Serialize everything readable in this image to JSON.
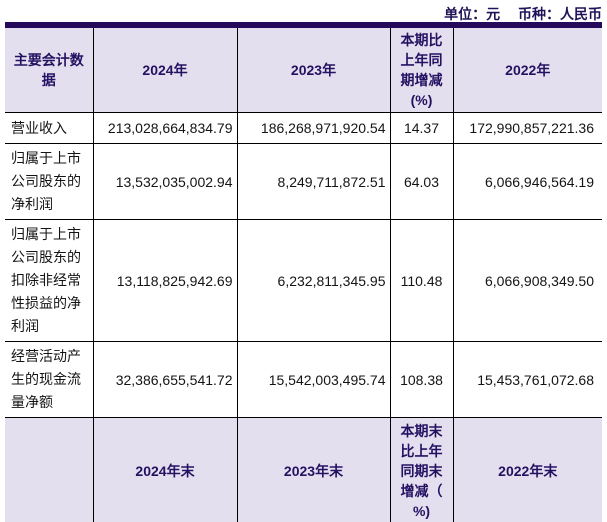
{
  "caption": {
    "unit_label": "单位：元",
    "currency_label": "币种：人民币"
  },
  "colors": {
    "top_rule": "#250a5c",
    "header_background": "#e4dfee",
    "header_text": "#241162",
    "grid_line": "#000000",
    "body_text": "#141414"
  },
  "table": {
    "header_row1": {
      "col1": "主要会计数据",
      "col2": "2024年",
      "col3": "2023年",
      "col4": "本期比\n上年同\n期增减\n(%)",
      "col5": "2022年"
    },
    "rows": [
      {
        "label": "营业收入",
        "y2024": "213,028,664,834.79",
        "y2023": "186,268,971,920.54",
        "change_pct": "14.37",
        "y2022": "172,990,857,221.36"
      },
      {
        "label": "归属于上市公司股东的净利润",
        "y2024": "13,532,035,002.94",
        "y2023": "8,249,711,872.51",
        "change_pct": "64.03",
        "y2022": "6,066,946,564.19"
      },
      {
        "label": "归属于上市公司股东的扣除非经常性损益的净利润",
        "y2024": "13,118,825,942.69",
        "y2023": "6,232,811,345.95",
        "change_pct": "110.48",
        "y2022": "6,066,908,349.50"
      },
      {
        "label": "经营活动产生的现金流量净额",
        "y2024": "32,386,655,541.72",
        "y2023": "15,542,003,495.74",
        "change_pct": "108.38",
        "y2022": "15,453,761,072.68"
      }
    ],
    "header_row2": {
      "col1": "",
      "col2": "2024年末",
      "col3": "2023年末",
      "col4": "本期末\n比上年\n同期末\n增减（\n%)",
      "col5": "2022年末"
    }
  }
}
